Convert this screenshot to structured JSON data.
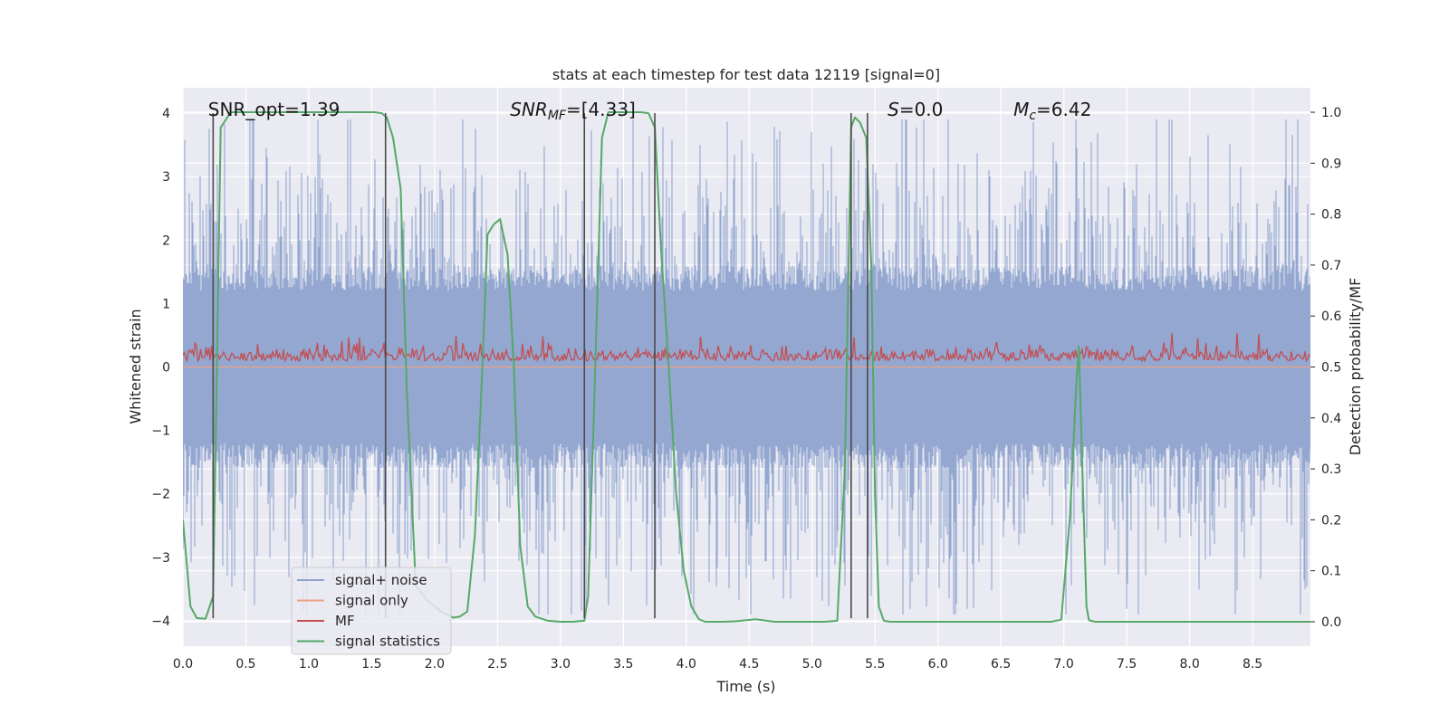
{
  "chart_data": {
    "type": "line",
    "title": "stats at each timestep for test data 12119 [signal=0]",
    "xlabel": "Time (s)",
    "ylabel_left": "Whitened strain",
    "ylabel_right": "Detection probability/MF",
    "xlim": [
      0,
      8.96
    ],
    "ylim_left": [
      -4.4,
      4.4
    ],
    "ylim_right": [
      -0.048,
      1.048
    ],
    "grid": true,
    "x_ticks": [
      "0.0",
      "0.5",
      "1.0",
      "1.5",
      "2.0",
      "2.5",
      "3.0",
      "3.5",
      "4.0",
      "4.5",
      "5.0",
      "5.5",
      "6.0",
      "6.5",
      "7.0",
      "7.5",
      "8.0",
      "8.5"
    ],
    "x_tick_values": [
      0,
      0.5,
      1,
      1.5,
      2,
      2.5,
      3,
      3.5,
      4,
      4.5,
      5,
      5.5,
      6,
      6.5,
      7,
      7.5,
      8,
      8.5
    ],
    "y_ticks_left": [
      "−4",
      "−3",
      "−2",
      "−1",
      "0",
      "1",
      "2",
      "3",
      "4"
    ],
    "y_tick_values_left": [
      -4,
      -3,
      -2,
      -1,
      0,
      1,
      2,
      3,
      4
    ],
    "y_ticks_right": [
      "0.0",
      "0.1",
      "0.2",
      "0.3",
      "0.4",
      "0.5",
      "0.6",
      "0.7",
      "0.8",
      "0.9",
      "1.0"
    ],
    "y_tick_values_right": [
      0,
      0.1,
      0.2,
      0.3,
      0.4,
      0.5,
      0.6,
      0.7,
      0.8,
      0.9,
      1.0
    ],
    "annotations": [
      {
        "text": "SNR_opt=1.39",
        "x": 0.2,
        "y": 4.0
      },
      {
        "text": "SNR",
        "sub": "MF",
        "post": "=[4.33]",
        "italic": true,
        "x": 2.6,
        "y": 4.0
      },
      {
        "text": "S",
        "post": "=0.0",
        "italic": true,
        "x": 5.6,
        "y": 4.0
      },
      {
        "text": "M",
        "sub": "c",
        "post": "=6.42",
        "italic": true,
        "x": 6.6,
        "y": 4.0
      }
    ],
    "vlines_x": [
      0.24,
      1.61,
      3.19,
      3.75,
      5.31,
      5.44
    ],
    "series": [
      {
        "name": "signal+ noise",
        "color": "#8ea3ce",
        "axis": "left",
        "kind": "noise",
        "amplitude_band": [
          -1.6,
          1.6
        ],
        "peak_range": [
          -3.9,
          3.9
        ]
      },
      {
        "name": "signal only",
        "color": "#f0a183",
        "axis": "left",
        "kind": "flat",
        "value": 0
      },
      {
        "name": "MF",
        "color": "#c44e52",
        "axis": "right",
        "kind": "mf",
        "range": [
          0.5,
          0.56
        ]
      },
      {
        "name": "signal statistics",
        "color": "#55a868",
        "axis": "right",
        "kind": "line",
        "x": [
          0,
          0.06,
          0.11,
          0.18,
          0.24,
          0.27,
          0.3,
          0.38,
          0.45,
          0.55,
          0.8,
          1.0,
          1.2,
          1.4,
          1.52,
          1.58,
          1.62,
          1.67,
          1.73,
          1.78,
          1.85,
          1.95,
          2.05,
          2.15,
          2.2,
          2.26,
          2.32,
          2.38,
          2.42,
          2.47,
          2.52,
          2.58,
          2.63,
          2.68,
          2.74,
          2.8,
          2.9,
          3.0,
          3.1,
          3.19,
          3.22,
          3.26,
          3.33,
          3.38,
          3.45,
          3.55,
          3.64,
          3.7,
          3.75,
          3.8,
          3.86,
          3.92,
          3.98,
          4.04,
          4.1,
          4.15,
          4.2,
          4.3,
          4.4,
          4.55,
          4.7,
          4.9,
          5.1,
          5.2,
          5.26,
          5.31,
          5.34,
          5.38,
          5.43,
          5.47,
          5.5,
          5.53,
          5.57,
          5.62,
          5.7,
          6.0,
          6.5,
          6.9,
          6.98,
          7.05,
          7.1,
          7.12,
          7.15,
          7.18,
          7.2,
          7.25,
          7.5,
          8.0,
          8.5,
          8.96
        ],
        "y": [
          0.2,
          0.03,
          0.007,
          0.006,
          0.05,
          0.5,
          0.97,
          1.0,
          1.0,
          1.0,
          1.0,
          1.0,
          1.0,
          1.0,
          1.0,
          0.998,
          0.99,
          0.95,
          0.85,
          0.45,
          0.07,
          0.04,
          0.02,
          0.008,
          0.01,
          0.02,
          0.17,
          0.5,
          0.76,
          0.78,
          0.79,
          0.72,
          0.5,
          0.15,
          0.03,
          0.01,
          0.002,
          0.0,
          0.0,
          0.002,
          0.05,
          0.36,
          0.95,
          1.0,
          1.0,
          1.0,
          1.0,
          0.998,
          0.97,
          0.73,
          0.5,
          0.25,
          0.1,
          0.03,
          0.005,
          0.0,
          0.0,
          0.0,
          0.001,
          0.005,
          0.0,
          0.0,
          0.0,
          0.002,
          0.3,
          0.97,
          0.99,
          0.98,
          0.95,
          0.7,
          0.25,
          0.03,
          0.002,
          0.0,
          0.0,
          0.0,
          0.0,
          0.0,
          0.004,
          0.21,
          0.47,
          0.54,
          0.28,
          0.03,
          0.003,
          0.0,
          0.0,
          0.0,
          0.0,
          0.0
        ]
      }
    ],
    "legend": {
      "placement": "lower-left",
      "entries": [
        "signal+ noise",
        "signal only",
        "MF",
        "signal statistics"
      ]
    }
  }
}
